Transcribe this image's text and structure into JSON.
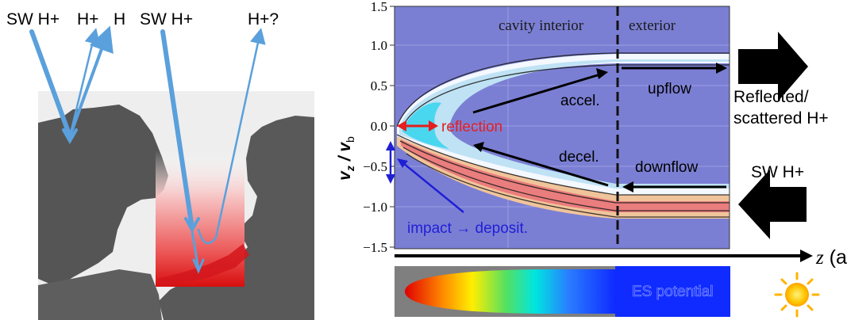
{
  "left_panel": {
    "labels": {
      "sw_h_plus_1": "SW H+",
      "h_plus": "H+",
      "h": "H",
      "sw_h_plus_2": "SW H+",
      "h_plus_question": "H+?"
    }
  },
  "plot": {
    "y_label_main": "v",
    "y_label_sub_z": "z",
    "y_label_slash": " / v",
    "y_label_sub_b": "b",
    "y_ticks": [
      "1.5",
      "1.0",
      "0.5",
      "0.0",
      "−0.5",
      "−1.0",
      "−1.5"
    ],
    "region_interior": "cavity interior",
    "region_exterior": "exterior",
    "annotations": {
      "accel": "accel.",
      "decel": "decel.",
      "upflow": "upflow",
      "downflow": "downflow",
      "reflection": "reflection",
      "impact": "impact → deposit."
    },
    "colors": {
      "background": "#7b7fd3",
      "reflection": "#e51e1e",
      "impact": "#1f1fd6"
    }
  },
  "right_labels": {
    "reflected_line1": "Reflected/",
    "reflected_line2": "scattered H+",
    "sw_h_plus": "SW H+"
  },
  "axis": {
    "z_symbol": "z",
    "z_unit": " (alt.)"
  },
  "es_bar": {
    "label": "ES potential"
  }
}
